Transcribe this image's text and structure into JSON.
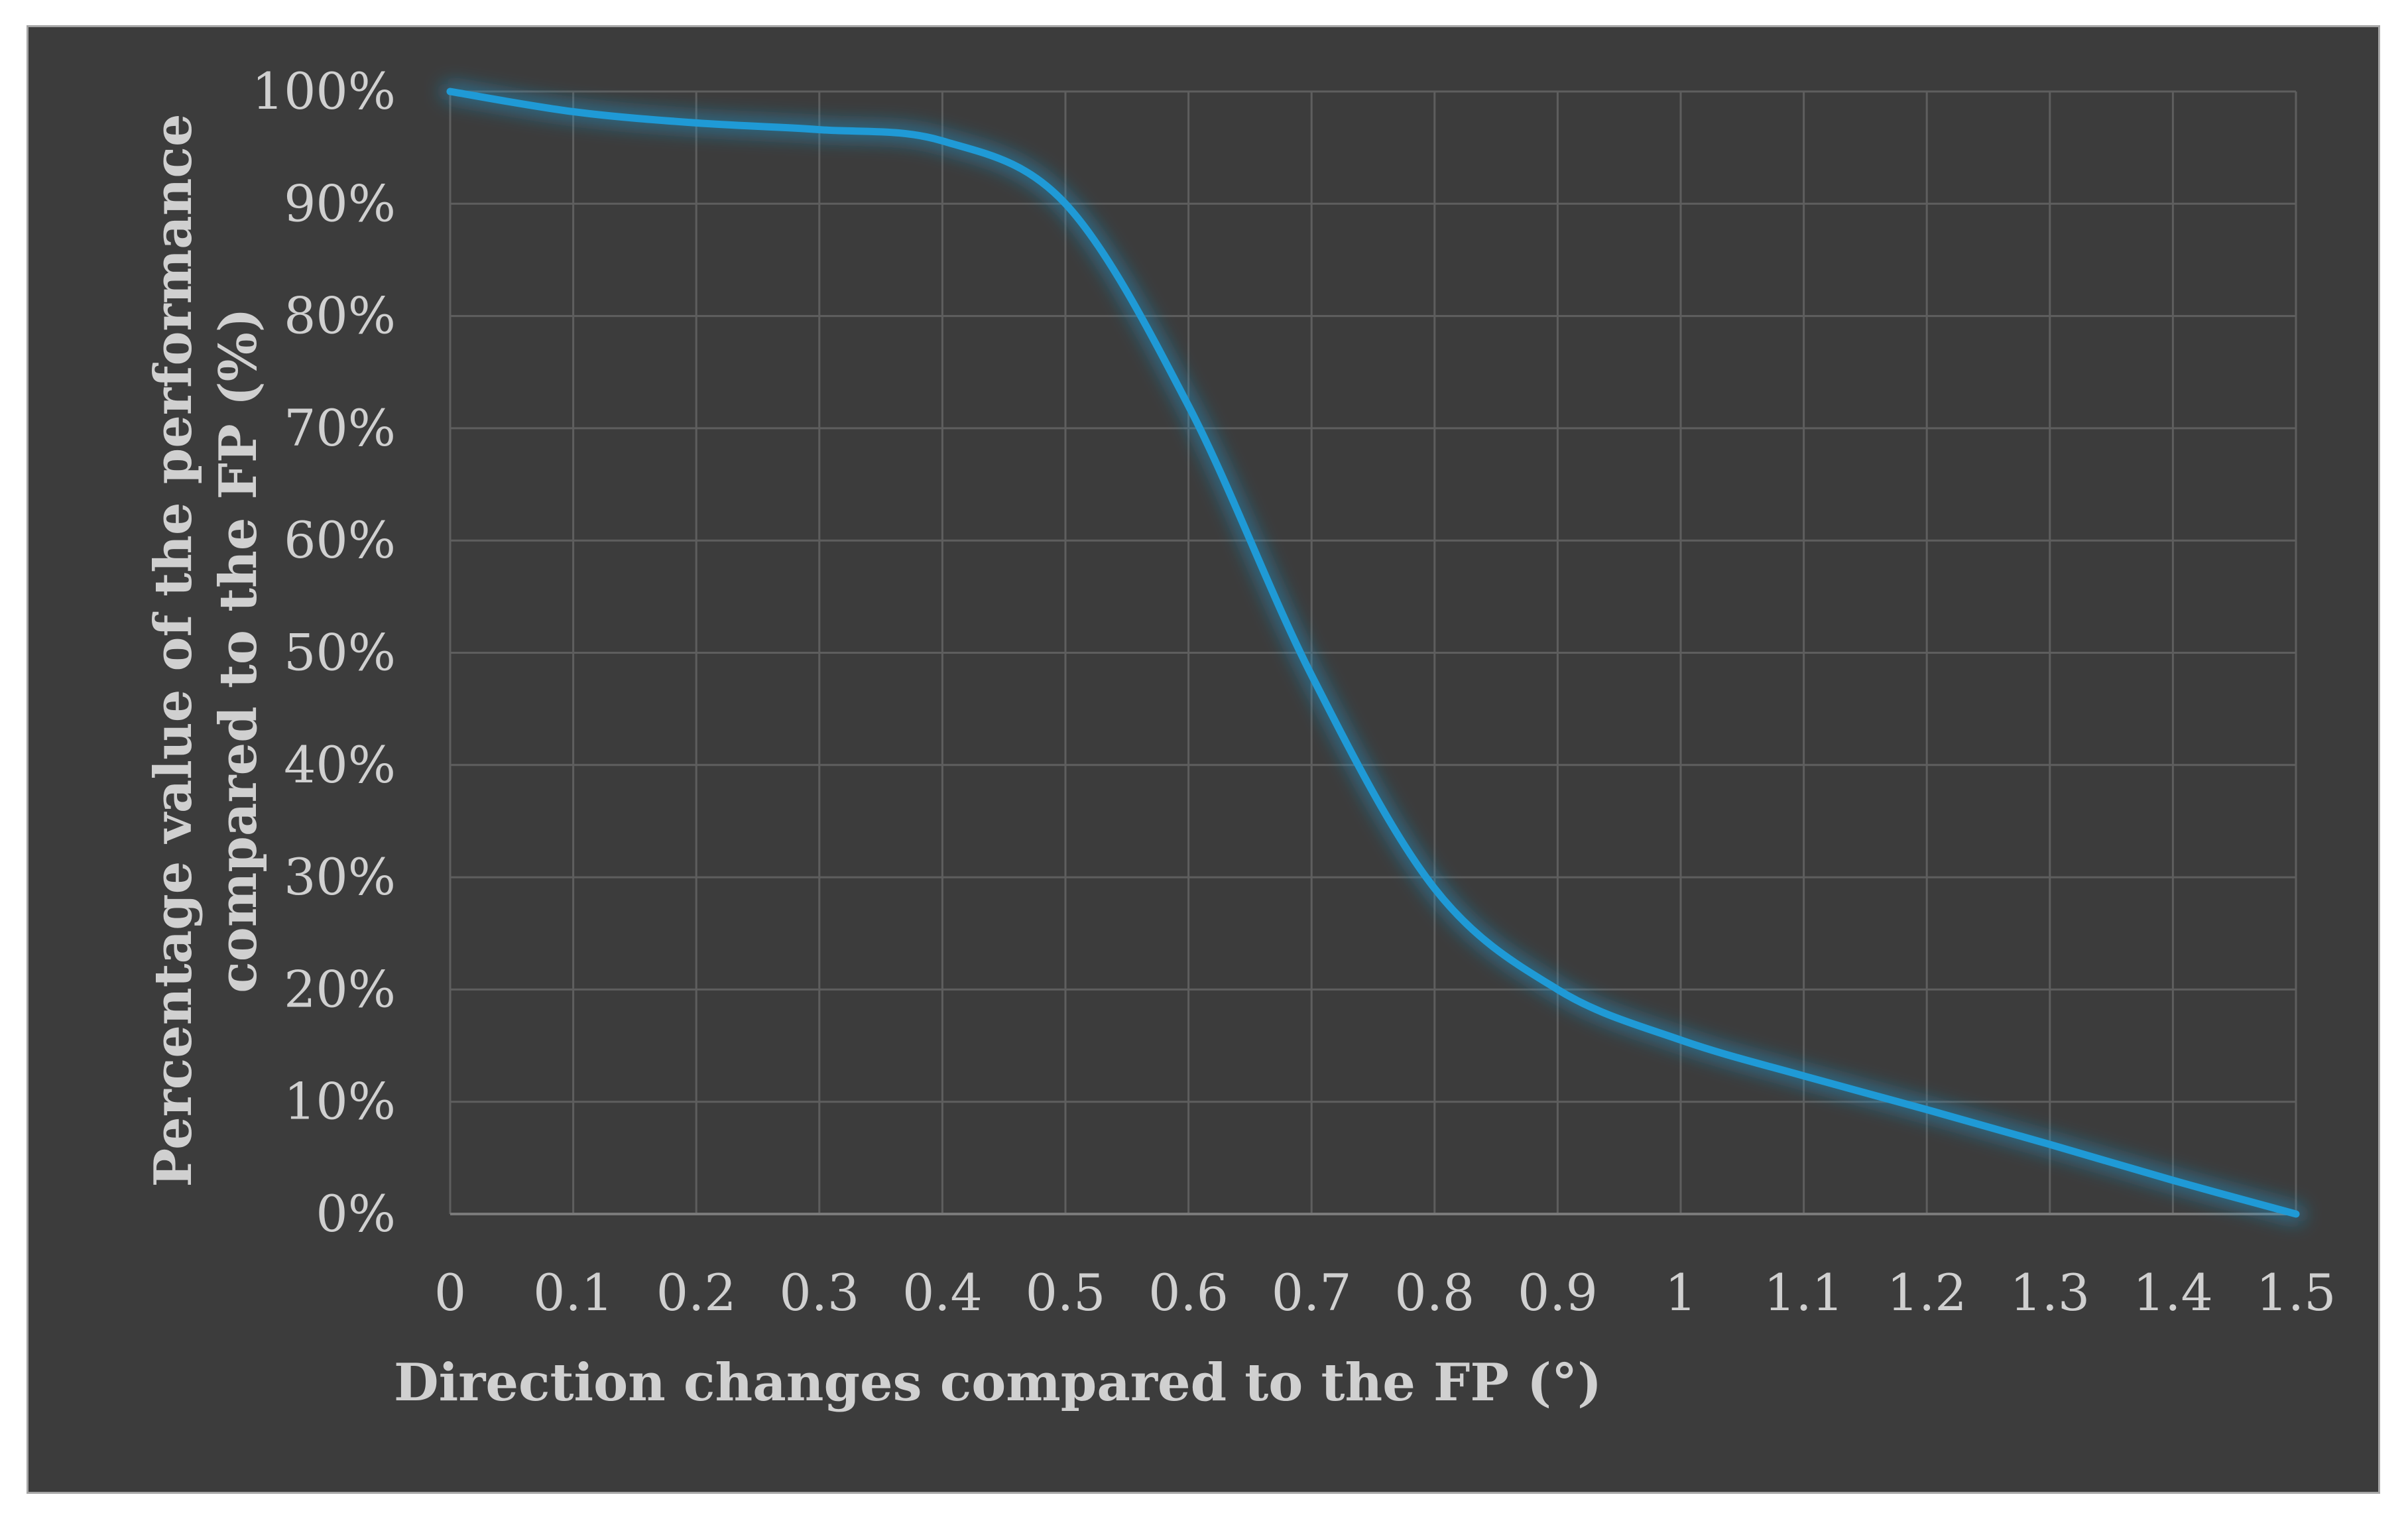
{
  "chart_data": {
    "type": "line",
    "title": "",
    "xlabel": "Direction changes compared to the FP (°)",
    "ylabel_line1": "Percentage value of the performance",
    "ylabel_line2": "compared to the FP (%)",
    "x_ticks": [
      "0",
      "0.1",
      "0.2",
      "0.3",
      "0.4",
      "0.5",
      "0.6",
      "0.7",
      "0.8",
      "0.9",
      "1",
      "1.1",
      "1.2",
      "1.3",
      "1.4",
      "1.5"
    ],
    "y_ticks": [
      "0%",
      "10%",
      "20%",
      "30%",
      "40%",
      "50%",
      "60%",
      "70%",
      "80%",
      "90%",
      "100%"
    ],
    "xlim": [
      0,
      1.5
    ],
    "ylim": [
      0,
      100
    ],
    "grid": true,
    "series": [
      {
        "color": "#1f9ad6",
        "x": [
          0,
          0.1,
          0.2,
          0.3,
          0.4,
          0.5,
          0.6,
          0.7,
          0.8,
          0.9,
          1.0,
          1.1,
          1.2,
          1.3,
          1.4,
          1.5
        ],
        "y": [
          100,
          98.2,
          97.2,
          96.6,
          95.6,
          90.0,
          72.0,
          48.0,
          29.0,
          20.0,
          15.5,
          12.3,
          9.3,
          6.2,
          3.0,
          0
        ]
      }
    ]
  },
  "colors": {
    "background": "#3c3c3c",
    "grid": "#5e5e5e",
    "text": "#d0d0d0",
    "line": "#1f9ad6"
  }
}
